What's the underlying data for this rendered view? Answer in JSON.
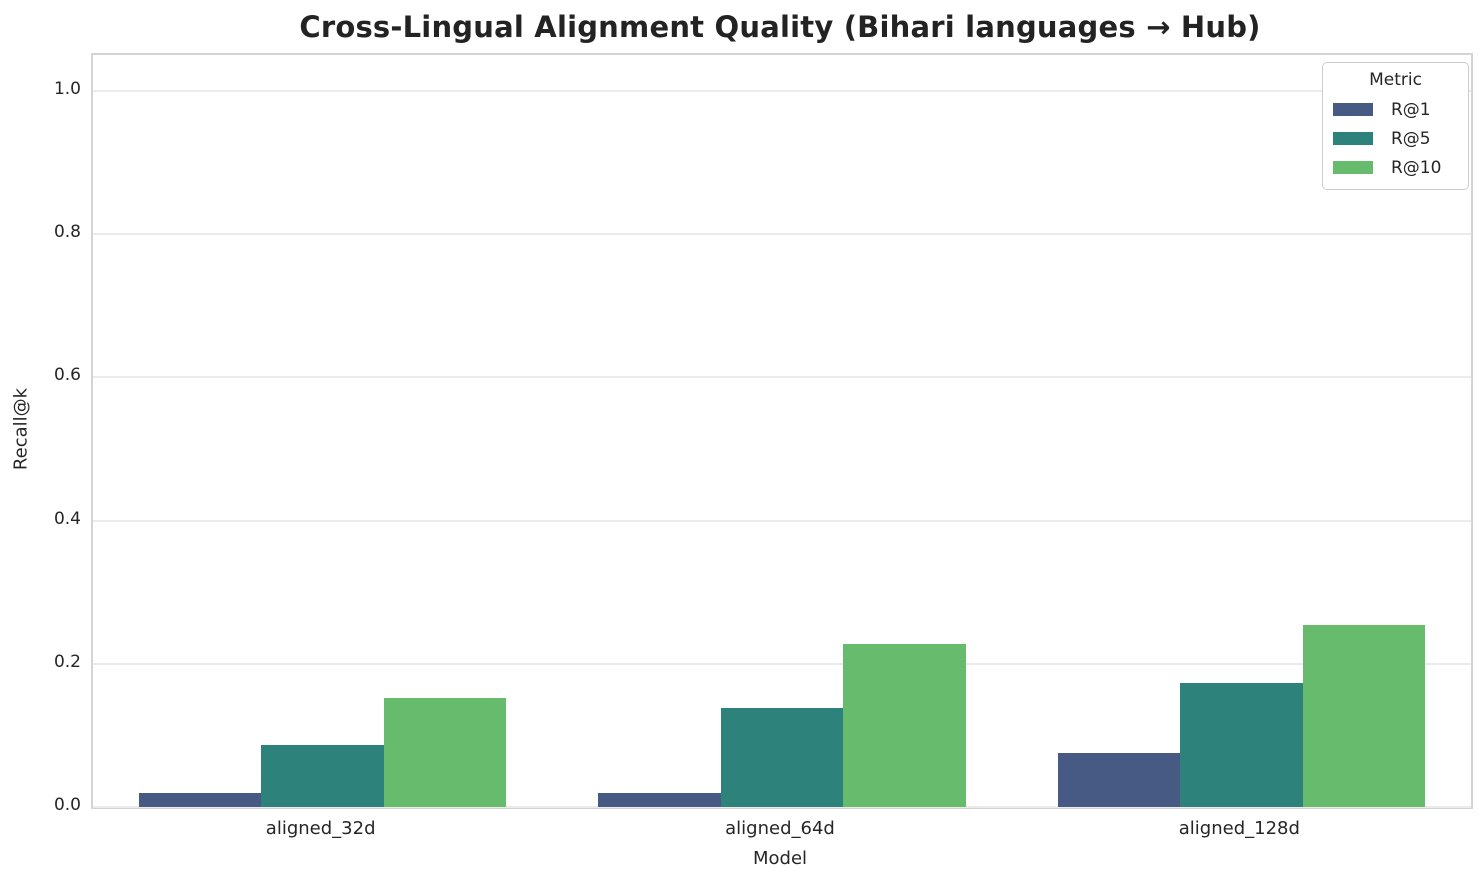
{
  "chart_data": {
    "type": "bar",
    "title": "Cross-Lingual Alignment Quality (Bihari languages → Hub)",
    "xlabel": "Model",
    "ylabel": "Recall@k",
    "categories": [
      "aligned_32d",
      "aligned_64d",
      "aligned_128d"
    ],
    "series": [
      {
        "name": "R@1",
        "color": "#465a84",
        "values": [
          0.02,
          0.02,
          0.075
        ]
      },
      {
        "name": "R@5",
        "color": "#2d837c",
        "values": [
          0.086,
          0.138,
          0.173
        ]
      },
      {
        "name": "R@10",
        "color": "#66bb6c",
        "values": [
          0.152,
          0.228,
          0.254
        ]
      }
    ],
    "yticks": [
      0.0,
      0.2,
      0.4,
      0.6,
      0.8,
      1.0
    ],
    "ylim": [
      0,
      1.05
    ],
    "grid": true,
    "legend_title": "Metric",
    "legend_position": "upper right"
  },
  "style_colors": {
    "grid": "#ebebeb",
    "spine": "#d4d4d4",
    "text": "#262626"
  }
}
